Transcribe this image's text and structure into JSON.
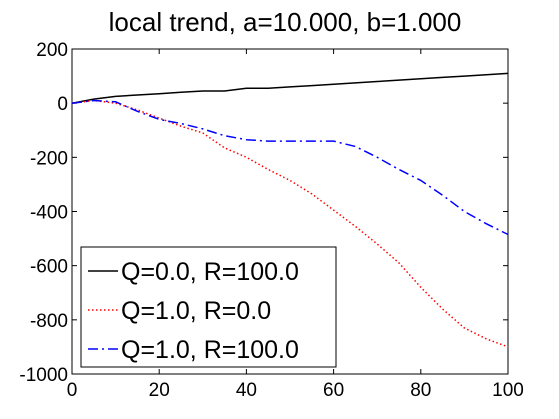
{
  "chart_data": {
    "type": "line",
    "title": "local trend, a=10.000, b=1.000",
    "xlabel": "",
    "ylabel": "",
    "xlim": [
      0,
      100
    ],
    "ylim": [
      -1000,
      200
    ],
    "xticks": [
      0,
      20,
      40,
      60,
      80,
      100
    ],
    "yticks": [
      -1000,
      -800,
      -600,
      -400,
      -200,
      0,
      200
    ],
    "grid": false,
    "legend_position": "bottom-left",
    "series": [
      {
        "name": "Q=0.0, R=100.0",
        "color": "#000000",
        "style": "solid",
        "x": [
          0,
          5,
          10,
          15,
          20,
          25,
          30,
          35,
          40,
          45,
          50,
          55,
          60,
          65,
          70,
          75,
          80,
          85,
          90,
          95,
          100
        ],
        "y": [
          0,
          15,
          25,
          30,
          35,
          40,
          45,
          45,
          55,
          55,
          60,
          65,
          70,
          75,
          80,
          85,
          90,
          95,
          100,
          105,
          110
        ]
      },
      {
        "name": "Q=1.0, R=0.0",
        "color": "#ff0000",
        "style": "dotted",
        "x": [
          0,
          5,
          10,
          15,
          20,
          25,
          30,
          35,
          40,
          45,
          50,
          55,
          60,
          65,
          70,
          75,
          80,
          85,
          90,
          95,
          100
        ],
        "y": [
          0,
          10,
          0,
          -25,
          -55,
          -85,
          -110,
          -165,
          -200,
          -245,
          -285,
          -335,
          -395,
          -455,
          -520,
          -590,
          -680,
          -760,
          -830,
          -870,
          -900
        ]
      },
      {
        "name": "Q=1.0, R=100.0",
        "color": "#0000ff",
        "style": "dashdot",
        "x": [
          0,
          5,
          10,
          15,
          20,
          25,
          30,
          35,
          40,
          45,
          50,
          55,
          60,
          65,
          70,
          75,
          80,
          85,
          90,
          95,
          100
        ],
        "y": [
          0,
          10,
          5,
          -30,
          -60,
          -75,
          -95,
          -120,
          -135,
          -140,
          -140,
          -140,
          -140,
          -160,
          -200,
          -245,
          -285,
          -340,
          -400,
          -445,
          -485
        ]
      }
    ]
  }
}
